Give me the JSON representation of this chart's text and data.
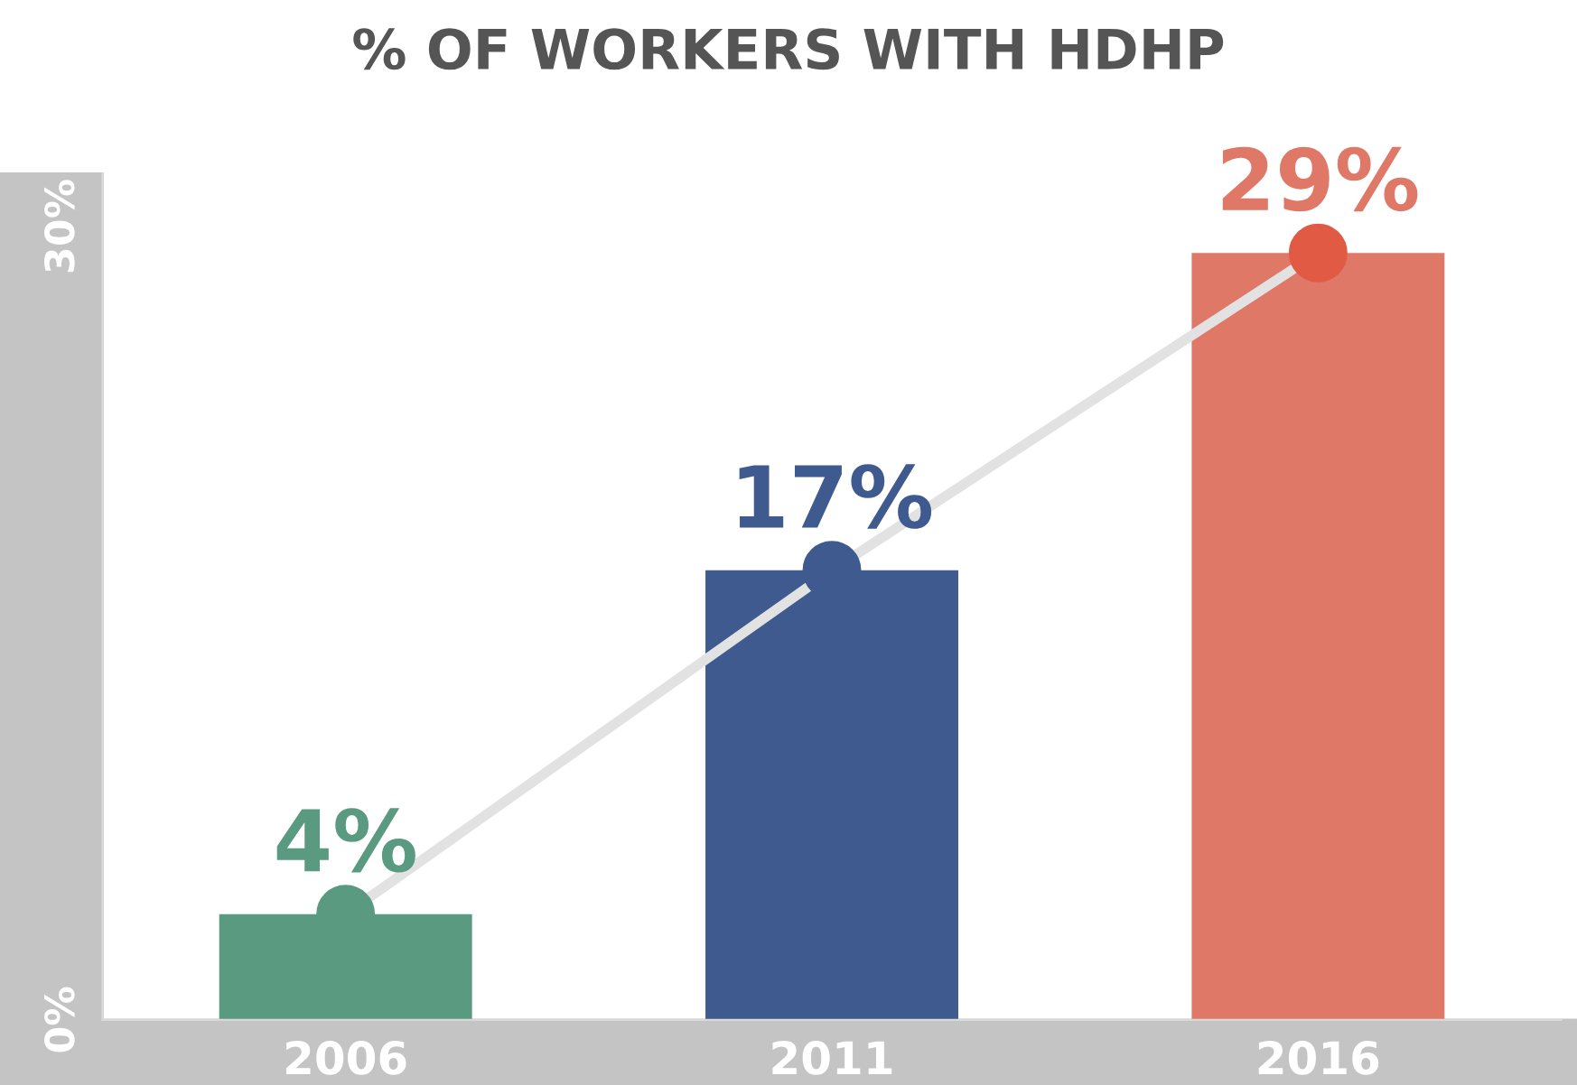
{
  "chart_data": {
    "type": "bar",
    "title": "% OF WORKERS WITH HDHP",
    "categories": [
      "2006",
      "2011",
      "2016"
    ],
    "series": [
      {
        "colors": [
          "#5a9a80",
          "#3e5a8e",
          "#e07868"
        ],
        "values": [
          4,
          17,
          29
        ],
        "value_labels": [
          "4%",
          "17%",
          "29%"
        ]
      },
      {
        "type": "line",
        "color": "#e2e2e2",
        "colors": [
          "#5a9a80",
          "#3e5a8e",
          "#e05a44"
        ],
        "values": [
          4,
          17,
          29
        ],
        "marker": "circle"
      }
    ],
    "ylim": [
      0,
      32
    ],
    "yticks": [
      {
        "value": 0,
        "label": "0%"
      },
      {
        "value": 30,
        "label": "30%"
      }
    ],
    "grid": false
  }
}
